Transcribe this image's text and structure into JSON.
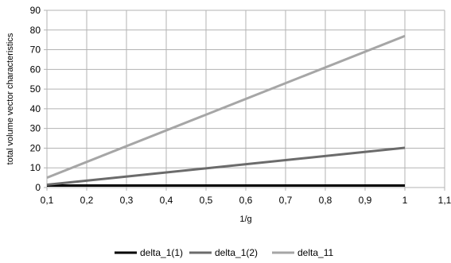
{
  "chart_data": {
    "type": "line",
    "title": "",
    "xlabel": "1/g",
    "ylabel": "total volume vector characteristics",
    "xlim": [
      0.1,
      1.1
    ],
    "ylim": [
      0,
      90
    ],
    "x_ticks": [
      "0,1",
      "0,2",
      "0,3",
      "0,4",
      "0,5",
      "0,6",
      "0,7",
      "0,8",
      "0,9",
      "1",
      "1,1"
    ],
    "y_ticks": [
      "0",
      "10",
      "20",
      "30",
      "40",
      "50",
      "60",
      "70",
      "80",
      "90"
    ],
    "grid": true,
    "legend_position": "bottom",
    "series": [
      {
        "name": "delta_1(1)",
        "color": "#000000",
        "x": [
          0.1,
          1.0
        ],
        "y": [
          1.0,
          1.0
        ]
      },
      {
        "name": "delta_1(2)",
        "color": "#6b6b6b",
        "x": [
          0.1,
          1.0
        ],
        "y": [
          1.4,
          20.2
        ]
      },
      {
        "name": "delta_11",
        "color": "#a6a6a6",
        "x": [
          0.1,
          1.0
        ],
        "y": [
          5.0,
          77.0
        ]
      }
    ]
  }
}
